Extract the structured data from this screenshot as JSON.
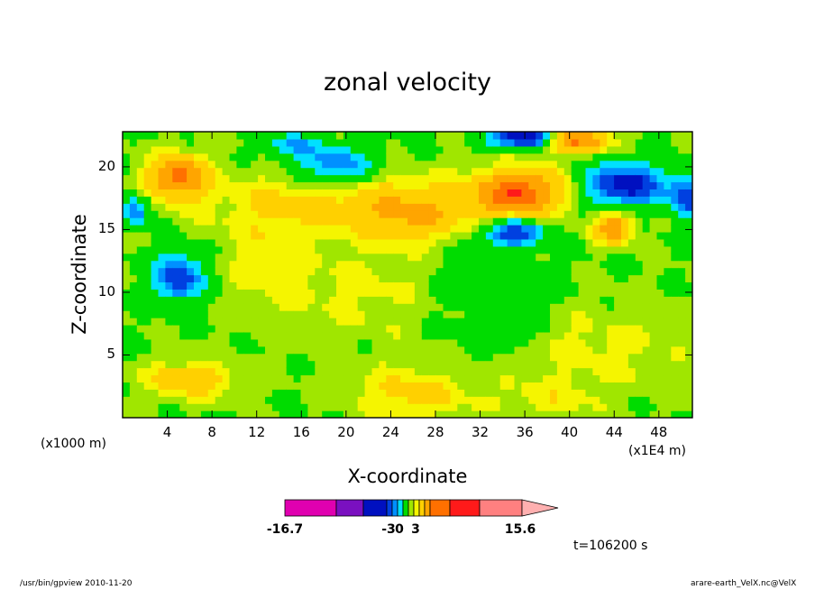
{
  "chart_data": {
    "type": "heatmap",
    "title": "zonal velocity",
    "xlabel": "X-coordinate",
    "ylabel": "Z-coordinate",
    "x_unit_left": "(x1000 m)",
    "x_unit_right": "(x1E4 m)",
    "xlim": [
      0,
      51
    ],
    "ylim": [
      0,
      22.8
    ],
    "x_ticks": [
      "4",
      "8",
      "12",
      "16",
      "20",
      "24",
      "28",
      "32",
      "36",
      "40",
      "44",
      "48"
    ],
    "x_tick_values": [
      4,
      8,
      12,
      16,
      20,
      24,
      28,
      32,
      36,
      40,
      44,
      48
    ],
    "y_ticks": [
      "5",
      "10",
      "15",
      "20"
    ],
    "y_tick_values": [
      5,
      10,
      15,
      20
    ],
    "colorbar": {
      "levels_min": -16.7,
      "levels_max": 15.6,
      "labels": [
        "-16.7",
        "-3",
        "0",
        "3",
        "15.6"
      ],
      "label_values": [
        -16.7,
        -3,
        0,
        3,
        15.6
      ],
      "colors": [
        "#e000b0",
        "#7a10c0",
        "#0010c0",
        "#0040e0",
        "#0090ff",
        "#00e0ff",
        "#00dc00",
        "#a0e600",
        "#f5f500",
        "#ffd000",
        "#ffa500",
        "#ff7000",
        "#ff1a1a",
        "#ff8080",
        "#ffb0b0"
      ]
    },
    "blobs": [
      {
        "x": 5,
        "z": 19.2,
        "rx": 2.6,
        "rz": 1.7,
        "v": 10
      },
      {
        "x": 19.5,
        "z": 17.2,
        "rx": 12,
        "rz": 2.5,
        "v": 3
      },
      {
        "x": 26,
        "z": 16.2,
        "rx": 5,
        "rz": 2.2,
        "v": 5
      },
      {
        "x": 35.5,
        "z": 18,
        "rx": 4,
        "rz": 1.8,
        "v": 11
      },
      {
        "x": 44,
        "z": 15.2,
        "rx": 1.7,
        "rz": 1.3,
        "v": 8
      },
      {
        "x": 40.5,
        "z": 22.2,
        "rx": 3,
        "rz": 1,
        "v": 10
      },
      {
        "x": 19,
        "z": 20.2,
        "rx": 3.5,
        "rz": 1.5,
        "v": -7
      },
      {
        "x": 15,
        "z": 21.8,
        "rx": 2.5,
        "rz": 1,
        "v": -5
      },
      {
        "x": 36,
        "z": 22.4,
        "rx": 3,
        "rz": 0.8,
        "v": -13
      },
      {
        "x": 45,
        "z": 18.6,
        "rx": 3.5,
        "rz": 1.6,
        "v": -12
      },
      {
        "x": 50.5,
        "z": 17.6,
        "rx": 1.5,
        "rz": 1.5,
        "v": -9
      },
      {
        "x": 35,
        "z": 14.8,
        "rx": 2.4,
        "rz": 1,
        "v": -10
      },
      {
        "x": 5,
        "z": 11.2,
        "rx": 2.2,
        "rz": 1.8,
        "v": -10
      },
      {
        "x": 35,
        "z": 7.2,
        "rx": 2,
        "rz": 1.5,
        "v": -2.5
      },
      {
        "x": 1.2,
        "z": 16.6,
        "rx": 1.2,
        "rz": 1.2,
        "v": -7
      },
      {
        "x": 42,
        "z": 5.5,
        "rx": 9,
        "rz": 3.5,
        "v": 2
      },
      {
        "x": 6,
        "z": 3,
        "rx": 4,
        "rz": 1.4,
        "v": 5
      },
      {
        "x": 26,
        "z": 2,
        "rx": 5,
        "rz": 2,
        "v": 4
      },
      {
        "x": 38,
        "z": 1.5,
        "rx": 5,
        "rz": 1.5,
        "v": 2
      },
      {
        "x": 23,
        "z": 10,
        "rx": 8,
        "rz": 4,
        "v": 2
      },
      {
        "x": 13,
        "z": 13,
        "rx": 4,
        "rz": 5,
        "v": 2
      },
      {
        "x": 32,
        "z": 10,
        "rx": 6,
        "rz": 5,
        "v": -2
      }
    ]
  },
  "timestamp": "t=106200 s",
  "footer_left": "/usr/bin/gpview  2010-11-20",
  "footer_right": "arare-earth_VelX.nc@VelX"
}
